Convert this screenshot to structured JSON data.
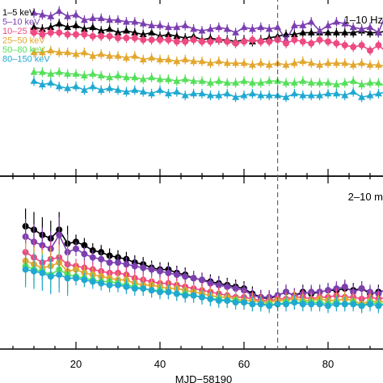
{
  "figure": {
    "xlabel": "MJD−58190",
    "vline_x": 68
  },
  "chart_data": [
    {
      "type": "line",
      "panel": "top",
      "annotation": "1–10 Hz",
      "xlim": [
        0,
        95
      ],
      "ylim": [
        0,
        10
      ],
      "x_ticks": [
        20,
        40,
        60,
        80
      ],
      "legend_placement": "top-left",
      "series": [
        {
          "name": "1–5 keV",
          "color": "#000000",
          "marker": "triangle",
          "x": [
            10,
            12,
            14,
            16,
            18,
            20,
            22,
            24,
            26,
            28,
            30,
            32,
            34,
            36,
            38,
            40,
            42,
            44,
            46,
            48,
            50,
            52,
            54,
            56,
            58,
            60,
            62,
            64,
            66,
            68,
            70,
            72,
            74,
            76,
            78,
            80,
            82,
            84,
            86,
            88,
            90,
            92,
            94
          ],
          "y": [
            8.3,
            8.2,
            8.3,
            8.5,
            8.3,
            8.4,
            8.2,
            8.3,
            8.1,
            8.2,
            8.0,
            8.1,
            8.0,
            7.9,
            8.0,
            7.8,
            7.9,
            7.8,
            7.7,
            7.8,
            7.6,
            7.7,
            7.6,
            7.6,
            7.5,
            7.6,
            7.5,
            7.6,
            7.7,
            7.8,
            7.9,
            7.9,
            8.0,
            8.0,
            8.0,
            8.0,
            8.0,
            8.0,
            8.0,
            8.1,
            8.0,
            8.0,
            8.1
          ]
        },
        {
          "name": "5–10 keV",
          "color": "#7b3fb0",
          "marker": "triangle",
          "x": [
            10,
            12,
            14,
            16,
            18,
            20,
            22,
            24,
            26,
            28,
            30,
            32,
            34,
            36,
            38,
            40,
            42,
            44,
            46,
            48,
            50,
            52,
            54,
            56,
            58,
            60,
            62,
            64,
            66,
            68,
            70,
            72,
            74,
            76,
            78,
            80,
            82,
            84,
            86,
            88,
            90,
            92,
            94
          ],
          "y": [
            9.1,
            9.0,
            8.9,
            9.2,
            8.9,
            9.0,
            8.7,
            8.8,
            8.8,
            8.7,
            8.7,
            8.6,
            8.6,
            8.5,
            8.4,
            8.4,
            8.3,
            8.3,
            8.4,
            8.2,
            8.1,
            8.2,
            8.3,
            8.2,
            8.0,
            8.3,
            8.2,
            8.3,
            8.2,
            8.3,
            7.6,
            8.4,
            8.4,
            8.6,
            8.1,
            8.4,
            8.6,
            8.5,
            8.3,
            8.2,
            8.3,
            8.0,
            9.2
          ]
        },
        {
          "name": "10–25 keV",
          "color": "#ee4a82",
          "marker": "circle",
          "x": [
            10,
            12,
            14,
            16,
            18,
            20,
            22,
            24,
            26,
            28,
            30,
            32,
            34,
            36,
            38,
            40,
            42,
            44,
            46,
            48,
            50,
            52,
            54,
            56,
            58,
            60,
            62,
            64,
            66,
            68,
            70,
            72,
            74,
            76,
            78,
            80,
            82,
            84,
            86,
            88,
            90,
            92,
            94
          ],
          "y": [
            8.0,
            7.9,
            8.0,
            8.0,
            7.9,
            7.9,
            7.9,
            7.8,
            7.8,
            7.8,
            7.7,
            7.7,
            7.7,
            7.6,
            7.6,
            7.6,
            7.6,
            7.5,
            7.5,
            7.6,
            7.5,
            7.5,
            7.6,
            7.5,
            7.4,
            7.5,
            7.6,
            7.5,
            7.5,
            7.6,
            7.4,
            7.6,
            7.5,
            7.4,
            7.6,
            7.5,
            7.4,
            7.3,
            7.2,
            7.3,
            7.0,
            7.3,
            6.9
          ]
        },
        {
          "name": "25–50 keV",
          "color": "#e3a72f",
          "marker": "triangle",
          "x": [
            10,
            12,
            14,
            16,
            18,
            20,
            22,
            24,
            26,
            28,
            30,
            32,
            34,
            36,
            38,
            40,
            42,
            44,
            46,
            48,
            50,
            52,
            54,
            56,
            58,
            60,
            62,
            64,
            66,
            68,
            70,
            72,
            74,
            76,
            78,
            80,
            82,
            84,
            86,
            88,
            90,
            92,
            94
          ],
          "y": [
            6.9,
            6.9,
            7.0,
            6.9,
            6.9,
            6.8,
            6.9,
            6.7,
            6.8,
            6.7,
            6.7,
            6.6,
            6.7,
            6.5,
            6.6,
            6.5,
            6.5,
            6.4,
            6.5,
            6.4,
            6.4,
            6.3,
            6.4,
            6.3,
            6.3,
            6.3,
            6.2,
            6.3,
            6.2,
            6.3,
            6.2,
            6.3,
            6.4,
            6.3,
            6.2,
            6.3,
            6.3,
            6.3,
            6.2,
            6.3,
            6.2,
            6.2,
            6.1
          ]
        },
        {
          "name": "50–80 keV",
          "color": "#55e05a",
          "marker": "triangle",
          "x": [
            10,
            12,
            14,
            16,
            18,
            20,
            22,
            24,
            26,
            28,
            30,
            32,
            34,
            36,
            38,
            40,
            42,
            44,
            46,
            48,
            50,
            52,
            54,
            56,
            58,
            60,
            62,
            64,
            66,
            68,
            70,
            72,
            74,
            76,
            78,
            80,
            82,
            84,
            86,
            88,
            90,
            92,
            94
          ],
          "y": [
            5.8,
            5.8,
            5.7,
            5.8,
            5.7,
            5.7,
            5.6,
            5.7,
            5.6,
            5.5,
            5.6,
            5.5,
            5.5,
            5.4,
            5.5,
            5.4,
            5.4,
            5.3,
            5.4,
            5.3,
            5.3,
            5.2,
            5.3,
            5.2,
            5.2,
            5.3,
            5.2,
            5.2,
            5.3,
            5.3,
            5.2,
            5.2,
            5.3,
            5.2,
            5.2,
            5.2,
            5.1,
            5.2,
            5.3,
            5.1,
            5.2,
            5.2,
            5.0
          ]
        },
        {
          "name": "80–150 keV",
          "color": "#1fa9d1",
          "marker": "triangle",
          "x": [
            10,
            12,
            14,
            16,
            18,
            20,
            22,
            24,
            26,
            28,
            30,
            32,
            34,
            36,
            38,
            40,
            42,
            44,
            46,
            48,
            50,
            52,
            54,
            56,
            58,
            60,
            62,
            64,
            66,
            68,
            70,
            72,
            74,
            76,
            78,
            80,
            82,
            84,
            86,
            88,
            90,
            92,
            94
          ],
          "y": [
            5.3,
            5.1,
            5.2,
            5.0,
            4.9,
            5.0,
            4.8,
            5.0,
            4.8,
            4.9,
            4.8,
            4.7,
            4.8,
            4.7,
            4.6,
            4.8,
            4.6,
            4.7,
            4.5,
            4.6,
            4.6,
            4.5,
            4.5,
            4.6,
            4.4,
            4.5,
            4.6,
            4.5,
            4.5,
            4.5,
            4.4,
            4.6,
            4.5,
            4.5,
            4.5,
            4.6,
            4.6,
            4.5,
            4.7,
            4.4,
            4.5,
            4.6,
            4.7
          ]
        }
      ]
    },
    {
      "type": "line",
      "panel": "bottom",
      "annotation": "2–10 m",
      "xlim": [
        0,
        95
      ],
      "ylim": [
        0,
        10
      ],
      "x_ticks": [
        20,
        40,
        60,
        80
      ],
      "series": [
        {
          "name": "1–5 keV",
          "color": "#000000",
          "marker": "circle",
          "x": [
            8,
            10,
            12,
            14,
            16,
            18,
            20,
            22,
            24,
            26,
            28,
            30,
            32,
            34,
            36,
            38,
            40,
            42,
            44,
            46,
            48,
            50,
            52,
            54,
            56,
            58,
            60,
            62,
            64,
            66,
            68,
            70,
            72,
            74,
            76,
            78,
            80,
            82,
            84,
            86,
            88,
            90,
            92,
            94
          ],
          "y": [
            7.1,
            6.9,
            6.6,
            6.4,
            6.9,
            6.1,
            6.2,
            6.0,
            5.7,
            5.6,
            5.4,
            5.3,
            5.2,
            5.0,
            4.9,
            4.7,
            4.6,
            4.6,
            4.4,
            4.3,
            4.1,
            4.0,
            3.9,
            3.8,
            3.7,
            3.6,
            3.5,
            3.2,
            3.0,
            2.9,
            3.1,
            3.3,
            3.1,
            3.3,
            3.2,
            3.3,
            3.4,
            3.4,
            3.5,
            3.4,
            3.5,
            3.2,
            3.3,
            3.4
          ]
        },
        {
          "name": "5–10 keV",
          "color": "#7b3fb0",
          "marker": "circle",
          "x": [
            8,
            10,
            12,
            14,
            16,
            18,
            20,
            22,
            24,
            26,
            28,
            30,
            32,
            34,
            36,
            38,
            40,
            42,
            44,
            46,
            48,
            50,
            52,
            54,
            56,
            58,
            60,
            62,
            64,
            66,
            68,
            70,
            72,
            74,
            76,
            78,
            80,
            82,
            84,
            86,
            88,
            90,
            92,
            94
          ],
          "y": [
            6.5,
            6.2,
            6.0,
            5.8,
            6.6,
            5.6,
            5.8,
            5.5,
            5.3,
            5.2,
            5.0,
            5.0,
            4.9,
            4.8,
            4.7,
            4.6,
            4.5,
            4.4,
            4.3,
            4.2,
            4.1,
            4.0,
            3.8,
            3.7,
            3.6,
            3.5,
            3.4,
            3.1,
            3.0,
            3.0,
            3.1,
            3.3,
            3.1,
            3.2,
            3.3,
            3.3,
            3.4,
            3.5,
            3.6,
            3.3,
            3.5,
            3.3,
            3.2,
            3.5
          ]
        },
        {
          "name": "10–25 keV",
          "color": "#ee4a82",
          "marker": "circle",
          "x": [
            8,
            10,
            12,
            14,
            16,
            18,
            20,
            22,
            24,
            26,
            28,
            30,
            32,
            34,
            36,
            38,
            40,
            42,
            44,
            46,
            48,
            50,
            52,
            54,
            56,
            58,
            60,
            62,
            64,
            66,
            68,
            70,
            72,
            74,
            76,
            78,
            80,
            82,
            84,
            86,
            88,
            90,
            92,
            94
          ],
          "y": [
            5.6,
            5.3,
            5.0,
            5.2,
            5.3,
            4.9,
            4.8,
            4.7,
            4.6,
            4.5,
            4.4,
            4.4,
            4.3,
            4.1,
            4.0,
            3.9,
            3.8,
            3.8,
            3.7,
            3.6,
            3.5,
            3.4,
            3.3,
            3.2,
            3.1,
            3.0,
            3.0,
            2.9,
            2.8,
            2.8,
            2.9,
            2.9,
            3.0,
            3.0,
            2.9,
            3.0,
            3.0,
            3.1,
            3.0,
            3.0,
            2.9,
            3.0,
            2.9,
            3.0
          ]
        },
        {
          "name": "25–50 keV",
          "color": "#e3a72f",
          "marker": "circle",
          "x": [
            8,
            10,
            12,
            14,
            16,
            18,
            20,
            22,
            24,
            26,
            28,
            30,
            32,
            34,
            36,
            38,
            40,
            42,
            44,
            46,
            48,
            50,
            52,
            54,
            56,
            58,
            60,
            62,
            64,
            66,
            68,
            70,
            72,
            74,
            76,
            78,
            80,
            82,
            84,
            86,
            88,
            90,
            92,
            94
          ],
          "y": [
            5.1,
            4.9,
            4.7,
            4.8,
            5.0,
            4.5,
            4.6,
            4.4,
            4.3,
            4.2,
            4.1,
            4.0,
            4.0,
            3.8,
            3.7,
            3.7,
            3.6,
            3.5,
            3.5,
            3.4,
            3.3,
            3.2,
            3.1,
            3.0,
            3.0,
            2.9,
            2.8,
            2.8,
            2.7,
            2.7,
            2.8,
            2.8,
            2.9,
            2.8,
            2.8,
            2.9,
            2.8,
            2.8,
            2.9,
            2.8,
            2.6,
            2.8,
            2.7,
            2.8
          ]
        },
        {
          "name": "50–80 keV",
          "color": "#55e05a",
          "marker": "circle",
          "x": [
            8,
            10,
            12,
            14,
            16,
            18,
            20,
            22,
            24,
            26,
            28,
            30,
            32,
            34,
            36,
            38,
            40,
            42,
            44,
            46,
            48,
            50,
            52,
            54,
            56,
            58,
            60,
            62,
            64,
            66,
            68,
            70,
            72,
            74,
            76,
            78,
            80,
            82,
            84,
            86,
            88,
            90,
            92,
            94
          ],
          "y": [
            4.8,
            4.6,
            4.5,
            4.3,
            4.6,
            4.3,
            4.2,
            4.1,
            4.0,
            3.9,
            3.9,
            3.8,
            3.7,
            3.6,
            3.5,
            3.4,
            3.4,
            3.3,
            3.2,
            3.2,
            3.1,
            3.0,
            2.9,
            2.9,
            2.8,
            2.8,
            2.7,
            2.6,
            2.6,
            2.6,
            2.6,
            2.7,
            2.7,
            2.7,
            2.7,
            2.7,
            2.6,
            2.7,
            2.6,
            2.7,
            2.5,
            2.7,
            2.6,
            2.6
          ]
        },
        {
          "name": "80–150 keV",
          "color": "#1fa9d1",
          "marker": "circle",
          "x": [
            8,
            10,
            12,
            14,
            16,
            18,
            20,
            22,
            24,
            26,
            28,
            30,
            32,
            34,
            36,
            38,
            40,
            42,
            44,
            46,
            48,
            50,
            52,
            54,
            56,
            58,
            60,
            62,
            64,
            66,
            68,
            70,
            72,
            74,
            76,
            78,
            80,
            82,
            84,
            86,
            88,
            90,
            92,
            94
          ],
          "y": [
            4.6,
            4.5,
            4.4,
            4.2,
            4.3,
            4.1,
            4.1,
            4.0,
            3.9,
            3.8,
            3.7,
            3.7,
            3.6,
            3.5,
            3.5,
            3.4,
            3.3,
            3.3,
            3.2,
            3.1,
            3.1,
            3.0,
            2.9,
            2.8,
            2.8,
            2.7,
            2.7,
            2.6,
            2.6,
            2.5,
            2.6,
            2.6,
            2.7,
            2.6,
            2.6,
            2.6,
            2.5,
            2.6,
            2.6,
            2.6,
            2.5,
            2.6,
            2.5,
            2.6
          ]
        }
      ]
    }
  ]
}
